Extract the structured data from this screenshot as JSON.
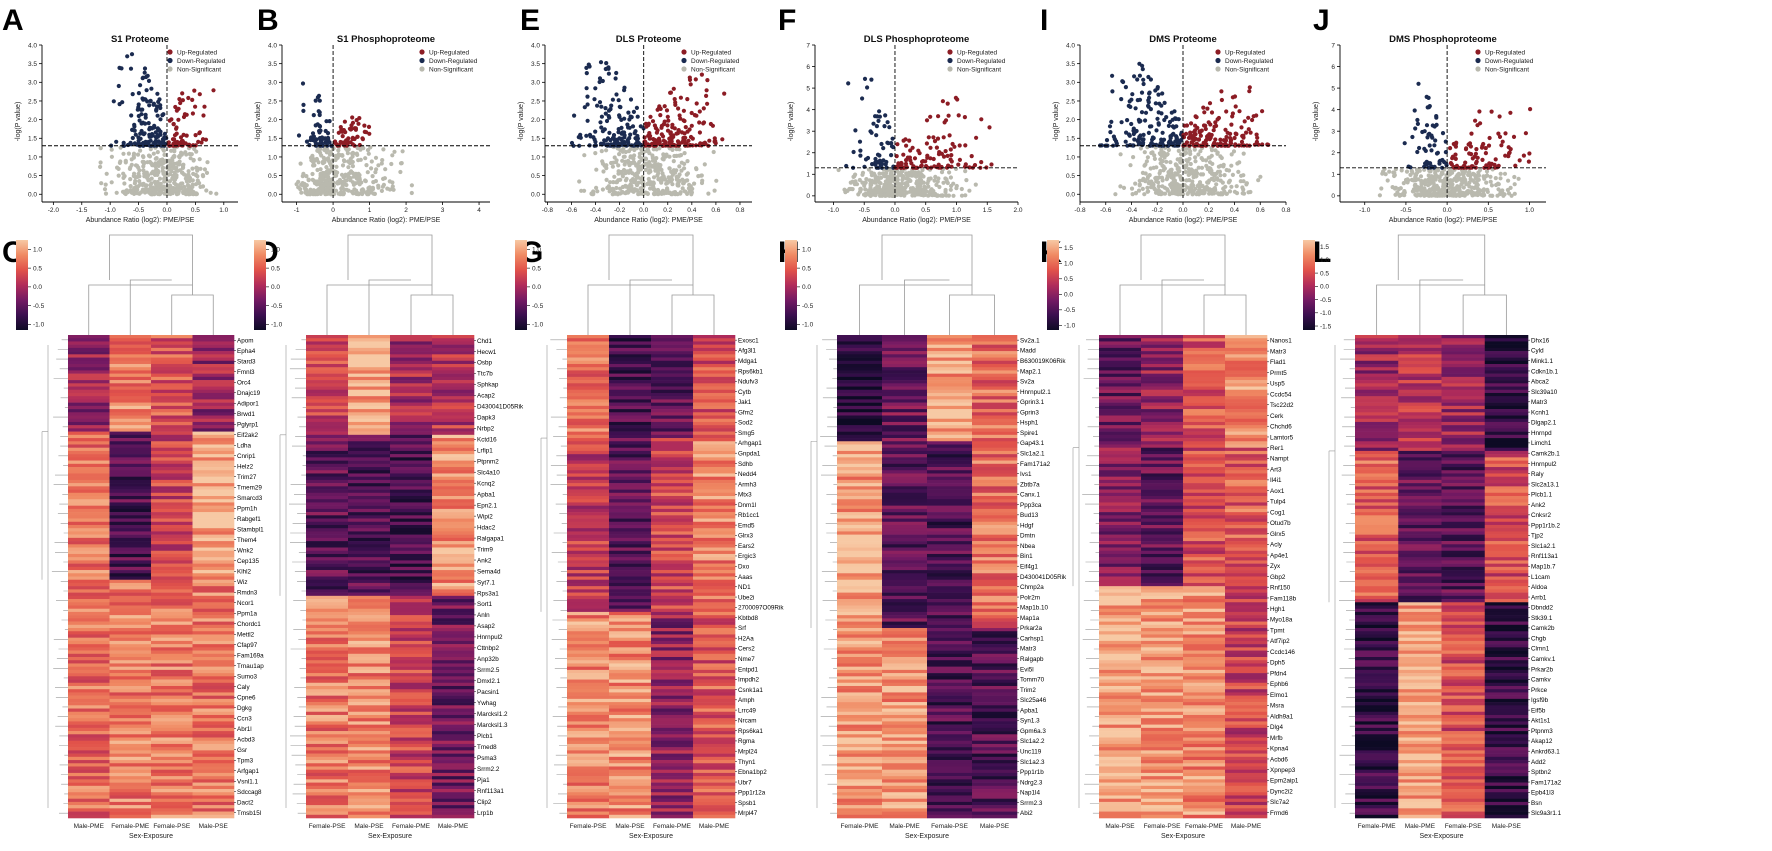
{
  "colors": {
    "up": "#8c1c24",
    "down": "#1b2b50",
    "ns": "#b9b9ae",
    "cmap": [
      "#0d0a24",
      "#3b0f4f",
      "#741a63",
      "#b12c5a",
      "#e1524a",
      "#f08a63",
      "#f7c9a4"
    ]
  },
  "chart_data": [
    {
      "type": "scatter",
      "panel": "A",
      "title": "S1 Proteome",
      "xlabel": "Abundance Ratio (log2): PME/PSE",
      "ylabel": "-log(P value)",
      "xlim": [
        -2.2,
        1.25
      ],
      "ylim": [
        -0.1,
        4.0
      ],
      "xticks": [
        "-2.0",
        "-1.5",
        "-1.0",
        "-0.5",
        "0.0",
        "0.5",
        "1.0"
      ],
      "yticks": [
        "0.0",
        "0.5",
        "1.0",
        "1.5",
        "2.0",
        "2.5",
        "3.0",
        "3.5",
        "4.0"
      ],
      "threshold": 1.3,
      "legend": [
        "Up-Regulated",
        "Down-Regulated",
        "Non-Significant"
      ],
      "spread": {
        "up": [
          0.0,
          0.9
        ],
        "down": [
          -1.0,
          0.0
        ],
        "ns": [
          -1.4,
          1.0
        ],
        "maxy": 3.9,
        "n_up": 70,
        "n_down": 150
      }
    },
    {
      "type": "scatter",
      "panel": "B",
      "title": "S1 Phosphoproteome",
      "xlabel": "Abundance Ratio (log2): PME/PSE",
      "ylabel": "-log(P value)",
      "xlim": [
        -1.4,
        4.3
      ],
      "ylim": [
        -0.1,
        4.0
      ],
      "xticks": [
        "-1",
        "0",
        "1",
        "2",
        "3",
        "4"
      ],
      "yticks": [
        "0.0",
        "0.5",
        "1.0",
        "1.5",
        "2.0",
        "2.5",
        "3.0",
        "3.5",
        "4.0"
      ],
      "threshold": 1.3,
      "legend": [
        "Up-Regulated",
        "Down-Regulated",
        "Non-Significant"
      ],
      "spread": {
        "up": [
          0.0,
          1.5
        ],
        "down": [
          -1.0,
          0.0
        ],
        "ns": [
          -1.2,
          2.5
        ],
        "maxy": 3.0,
        "n_up": 55,
        "n_down": 55
      }
    },
    {
      "type": "scatter",
      "panel": "E",
      "title": "DLS Proteome",
      "xlabel": "Abundance Ratio (log2): PME/PSE",
      "ylabel": "-log(P value)",
      "xlim": [
        -0.82,
        0.9
      ],
      "ylim": [
        -0.1,
        4.0
      ],
      "xticks": [
        "-0.8",
        "-0.6",
        "-0.4",
        "-0.2",
        "0.0",
        "0.2",
        "0.4",
        "0.6",
        "0.8"
      ],
      "yticks": [
        "0.0",
        "0.5",
        "1.0",
        "1.5",
        "2.0",
        "2.5",
        "3.0",
        "3.5",
        "4.0"
      ],
      "threshold": 1.3,
      "legend": [
        "Up-Regulated",
        "Down-Regulated",
        "Non-Significant"
      ],
      "spread": {
        "up": [
          0.0,
          0.7
        ],
        "down": [
          -0.65,
          0.0
        ],
        "ns": [
          -0.65,
          0.7
        ],
        "maxy": 3.8,
        "n_up": 170,
        "n_down": 160
      }
    },
    {
      "type": "scatter",
      "panel": "F",
      "title": "DLS Phosphoproteome",
      "xlabel": "Abundance Ratio (log2): PME/PSE",
      "ylabel": "-log(P value)",
      "xlim": [
        -1.3,
        2.0
      ],
      "ylim": [
        -0.1,
        7.0
      ],
      "xticks": [
        "-1.0",
        "-0.5",
        "0.0",
        "0.5",
        "1.0",
        "1.5",
        "2.0"
      ],
      "yticks": [
        "0",
        "1",
        "2",
        "3",
        "4",
        "5",
        "6",
        "7"
      ],
      "threshold": 1.3,
      "legend": [
        "Up-Regulated",
        "Down-Regulated",
        "Non-Significant"
      ],
      "spread": {
        "up": [
          0.0,
          1.8
        ],
        "down": [
          -0.8,
          0.0
        ],
        "ns": [
          -1.0,
          1.5
        ],
        "maxy": 5.6,
        "n_up": 110,
        "n_down": 60
      }
    },
    {
      "type": "scatter",
      "panel": "I",
      "title": "DMS Proteome",
      "xlabel": "Abundance Ratio (log2): PME/PSE",
      "ylabel": "-log(P value)",
      "xlim": [
        -0.8,
        0.8
      ],
      "ylim": [
        -0.1,
        4.0
      ],
      "xticks": [
        "-0.8",
        "-0.6",
        "-0.4",
        "-0.2",
        "0.0",
        "0.2",
        "0.4",
        "0.6",
        "0.8"
      ],
      "yticks": [
        "0.0",
        "0.5",
        "1.0",
        "1.5",
        "2.0",
        "2.5",
        "3.0",
        "3.5",
        "4.0"
      ],
      "threshold": 1.3,
      "legend": [
        "Up-Regulated",
        "Down-Regulated",
        "Non-Significant"
      ],
      "spread": {
        "up": [
          0.0,
          0.75
        ],
        "down": [
          -0.7,
          0.0
        ],
        "ns": [
          -0.6,
          0.7
        ],
        "maxy": 3.6,
        "n_up": 150,
        "n_down": 170
      }
    },
    {
      "type": "scatter",
      "panel": "J",
      "title": "DMS Phosphoproteome",
      "xlabel": "Abundance Ratio (log2): PME/PSE",
      "ylabel": "-log(P value)",
      "xlim": [
        -1.3,
        1.2
      ],
      "ylim": [
        -0.1,
        7.0
      ],
      "xticks": [
        "-1.0",
        "-0.5",
        "0.0",
        "0.5",
        "1.0"
      ],
      "yticks": [
        "0",
        "1",
        "2",
        "3",
        "4",
        "5",
        "6",
        "7"
      ],
      "threshold": 1.3,
      "legend": [
        "Up-Regulated",
        "Down-Regulated",
        "Non-Significant"
      ],
      "spread": {
        "up": [
          0.0,
          1.1
        ],
        "down": [
          -0.6,
          0.0
        ],
        "ns": [
          -1.0,
          1.1
        ],
        "maxy": 5.4,
        "n_up": 90,
        "n_down": 60
      }
    },
    {
      "type": "heatmap",
      "panel": "C",
      "xlabel": "Sex-Exposure",
      "columns": [
        "Male-PME",
        "Female-PME",
        "Female-PSE",
        "Male-PSE"
      ],
      "colorbar": [
        "1.0",
        "0.5",
        "0.0",
        "-0.5",
        "-1.0"
      ],
      "genes": [
        "Apom",
        "Epha4",
        "Stard3",
        "Fmnl3",
        "Orc4",
        "Dnajc19",
        "Adipor1",
        "Brwd1",
        "Pglyrp1",
        "Eif2ak2",
        "Ldha",
        "Cnrip1",
        "Helz2",
        "Trim27",
        "Tmem29",
        "Smarcd3",
        "Ppm1h",
        "Rabgef1",
        "Stambpl1",
        "Them4",
        "Wnk2",
        "Cep135",
        "Klhl2",
        "Wiz",
        "Rmdn3",
        "Ncor1",
        "Ppm1a",
        "Chordc1",
        "Mettl2",
        "Cfap97",
        "Fam169a",
        "Trnau1ap",
        "Sumo3",
        "Caly",
        "Cpne6",
        "Dgkg",
        "Ccn3",
        "Abr1l",
        "Acbd3",
        "Gsr",
        "Tpm3",
        "Arfgap1",
        "Vsnl1.1",
        "Sdccag8",
        "Dact2",
        "Tmsb15l"
      ]
    },
    {
      "type": "heatmap",
      "panel": "D",
      "xlabel": "Sex-Exposure",
      "columns": [
        "Female-PSE",
        "Male-PSE",
        "Female-PME",
        "Male-PME"
      ],
      "colorbar": [
        "1.0",
        "0.5",
        "0.0",
        "-0.5",
        "-1.0"
      ],
      "genes": [
        "Chd1",
        "Hecw1",
        "Osbp",
        "Ttc7b",
        "Sphkap",
        "Acap2",
        "D430041D05Rik",
        "Dapk3",
        "Nrbp2",
        "Kctd16",
        "Lrfip1",
        "Ptpnm2",
        "Slc4a10",
        "Kcnq2",
        "Apba1",
        "Epn2.1",
        "Wipi2",
        "Hdac2",
        "Ralgapa1",
        "Trim9",
        "Ank2",
        "Sema4d",
        "Syt7.1",
        "Rps3a1",
        "Sort1",
        "Anln",
        "Asap2",
        "Hnrnpul2",
        "Cttnbp2",
        "Anp32b",
        "Srrm2.5",
        "Dmxl2.1",
        "Pacsin1",
        "Ywhag",
        "Marcksl1.2",
        "Marcksl1.3",
        "Plcb1",
        "Tmed8",
        "Psma3",
        "Srrm2.2",
        "Pja1",
        "Rnf113a1",
        "Clip2",
        "Lrp1b"
      ]
    },
    {
      "type": "heatmap",
      "panel": "G",
      "xlabel": "Sex-Exposure",
      "columns": [
        "Female-PSE",
        "Male-PSE",
        "Female-PME",
        "Male-PME"
      ],
      "colorbar": [
        "1.0",
        "0.5",
        "0.0",
        "-0.5",
        "-1.0"
      ],
      "genes": [
        "Exosc1",
        "Afg3l1",
        "Mdga1",
        "Rps6kb1",
        "Ndufv3",
        "Cytb",
        "Jak1",
        "Gfm2",
        "Sod2",
        "Smg5",
        "Arhgap1",
        "Gnpda1",
        "Sdhb",
        "Nedd4",
        "Armh3",
        "Mtx3",
        "Dnm1l",
        "Rb1cc1",
        "Emd5",
        "Glrx3",
        "Ears2",
        "Ergic3",
        "Dxo",
        "Aaas",
        "ND1",
        "Ube2i",
        "2700097O09Rik",
        "Kbtbd8",
        "Srf",
        "H2Aa",
        "Cers2",
        "Nme7",
        "Entpd1",
        "Impdh2",
        "Csnk1a1",
        "Amph",
        "Lrrc49",
        "Nrcam",
        "Rps6ka1",
        "Rgma",
        "Mrpl24",
        "Thyn1",
        "Ebna1bp2",
        "Ubr7",
        "Ppp1r12a",
        "Spsb1",
        "Mrpl47"
      ]
    },
    {
      "type": "heatmap",
      "panel": "H",
      "xlabel": "Sex-Exposure",
      "columns": [
        "Female-PME",
        "Male-PME",
        "Female-PSE",
        "Male-PSE"
      ],
      "colorbar": [
        "1.0",
        "0.5",
        "0.0",
        "-0.5",
        "-1.0"
      ],
      "genes": [
        "Sv2a.1",
        "Madd",
        "B630019K06Rik",
        "Map2.1",
        "Sv2a",
        "Hnrnpul2.1",
        "Gprin3.1",
        "Gprin3",
        "Hsph1",
        "Spire1",
        "Gap43.1",
        "Slc1a2.1",
        "Fam171a2",
        "Ivs1",
        "Zbtb7a",
        "Canx.1",
        "Ppp3ca",
        "Bud13",
        "Hdgf",
        "Dmtn",
        "Nbea",
        "Bin1",
        "Eif4g1",
        "D430041D05Rik",
        "Chmp2a",
        "Polr2m",
        "Map1b.10",
        "Map1a",
        "Prkar2a",
        "Carhsp1",
        "Matr3",
        "Ralgapb",
        "Evi5l",
        "Tomm70",
        "Trim2",
        "Slc25a46",
        "Apba1",
        "Syn1.3",
        "Gpm6a.3",
        "Slc1a2.2",
        "Unc119",
        "Slc1a2.3",
        "Ppp1r1b",
        "Ndrg2.3",
        "Nap1l4",
        "Srrm2.3",
        "Abi2"
      ]
    },
    {
      "type": "heatmap",
      "panel": "K",
      "xlabel": "Sex-Exposure",
      "columns": [
        "Male-PSE",
        "Female-PSE",
        "Female-PME",
        "Male-PME"
      ],
      "colorbar": [
        "1.5",
        "1.0",
        "0.5",
        "0.0",
        "-0.5",
        "-1.0"
      ],
      "genes": [
        "Nanos1",
        "Matr3",
        "Flad1",
        "Prmt5",
        "Usp5",
        "Ccdc54",
        "Tsc22d2",
        "Cerk",
        "Chchd6",
        "Lamtor5",
        "Rer1",
        "Nampt",
        "Art3",
        "Il4i1",
        "Aox1",
        "Tulp4",
        "Cog1",
        "Otud7b",
        "Glrx5",
        "Acly",
        "Ap4e1",
        "Zyx",
        "Gbp2",
        "Rnf150",
        "Fam118b",
        "Hgh1",
        "Myo18a",
        "Tpmt",
        "Atf7ip2",
        "Ccdc146",
        "Dph5",
        "Pfdn4",
        "Ephb6",
        "Elmo1",
        "Msra",
        "Aldh9a1",
        "Dlg4",
        "Mrfb",
        "Kpna4",
        "Acbd6",
        "Xpnpep3",
        "Epm2aip1",
        "Dync2i2",
        "Slc7a2",
        "Frmd6"
      ]
    },
    {
      "type": "heatmap",
      "panel": "L",
      "xlabel": "Sex-Exposure",
      "columns": [
        "Female-PME",
        "Male-PME",
        "Female-PSE",
        "Male-PSE"
      ],
      "colorbar": [
        "1.5",
        "1.0",
        "0.5",
        "0.0",
        "-0.5",
        "-1.0",
        "-1.5"
      ],
      "genes": [
        "Dhx16",
        "Cyld",
        "Mink1.1",
        "Cdkn1b.1",
        "Abca2",
        "Slc39a10",
        "Matr3",
        "Kcnh1",
        "Dlgap2.1",
        "Hnrnpd",
        "Limch1",
        "Camk2b.1",
        "Hnrnpul2",
        "Raly",
        "Slc2a13.1",
        "Plcb1.1",
        "Ank2",
        "Cnksr2",
        "Ppp1r1b.2",
        "Tjp2",
        "Slc1a2.1",
        "Rnf113a1",
        "Map1b.7",
        "L1cam",
        "Aldoa",
        "Arrb1",
        "Dbndd2",
        "Stk39.1",
        "Camk2b",
        "Chgb",
        "Clmn1",
        "Camkv.1",
        "Prkar2b",
        "Camkv",
        "Prkce",
        "Igsf9b",
        "Eif5b",
        "Akt1s1",
        "Ptpnm3",
        "Akap12",
        "Ankrd63.1",
        "Add2",
        "Sptbn2",
        "Fam171a2",
        "Epb41l3",
        "Bsn",
        "Slc9a3r1.1"
      ]
    }
  ],
  "panel_letters": {
    "A": "A",
    "B": "B",
    "E": "E",
    "F": "F",
    "I": "I",
    "J": "J",
    "C": "C",
    "D": "D",
    "G": "G",
    "H": "H",
    "K": "K",
    "L": "L"
  }
}
